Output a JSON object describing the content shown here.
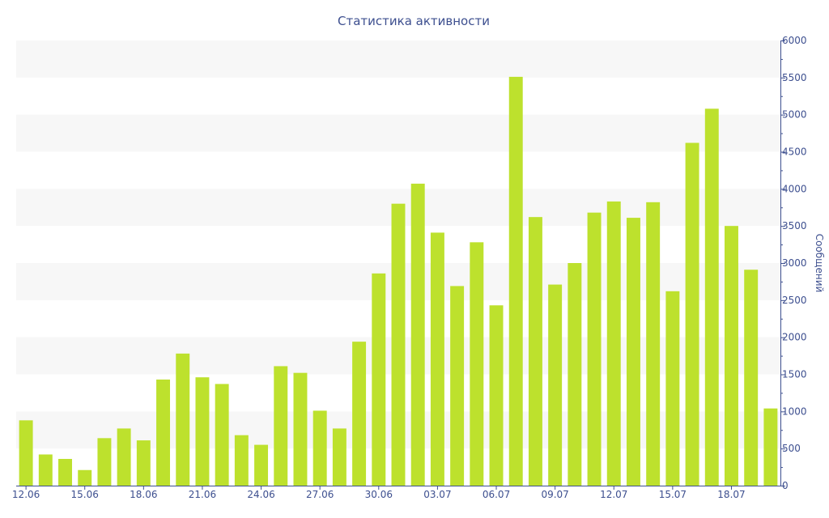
{
  "chart_data": {
    "type": "bar",
    "title": "Статистика активности",
    "xlabel": "",
    "ylabel": "Сообщений",
    "y_axis_side": "right",
    "ylim": [
      0,
      6000
    ],
    "y_ticks": [
      "0",
      "500",
      "1000",
      "1500",
      "2000",
      "2500",
      "3000",
      "3500",
      "4000",
      "4500",
      "5000",
      "5500",
      "6000"
    ],
    "x_tick_labels": [
      "12.06",
      "15.06",
      "18.06",
      "21.06",
      "24.06",
      "27.06",
      "30.06",
      "03.07",
      "06.07",
      "09.07",
      "12.07",
      "15.07",
      "18.07"
    ],
    "categories": [
      "12.06",
      "13.06",
      "14.06",
      "15.06",
      "16.06",
      "17.06",
      "18.06",
      "19.06",
      "20.06",
      "21.06",
      "22.06",
      "23.06",
      "24.06",
      "25.06",
      "26.06",
      "27.06",
      "28.06",
      "29.06",
      "30.06",
      "01.07",
      "02.07",
      "03.07",
      "04.07",
      "05.07",
      "06.07",
      "07.07",
      "08.07",
      "09.07",
      "10.07",
      "11.07",
      "12.07",
      "13.07",
      "14.07",
      "15.07",
      "16.07",
      "17.07",
      "18.07",
      "19.07",
      "20.07"
    ],
    "values": [
      880,
      420,
      360,
      210,
      640,
      770,
      610,
      1430,
      1780,
      1460,
      1370,
      680,
      550,
      1610,
      1520,
      1010,
      770,
      1940,
      2860,
      3800,
      4070,
      3410,
      2690,
      3280,
      2430,
      5510,
      3620,
      2710,
      3000,
      3680,
      3830,
      3610,
      3820,
      2620,
      4620,
      5080,
      3500,
      2910,
      1040
    ],
    "colors": {
      "bar": "#bde12d",
      "text": "#3d4f8f",
      "band": "#f7f7f7",
      "axis": "#3d4f8f"
    },
    "grid": "alternating horizontal bands",
    "legend": "none"
  }
}
